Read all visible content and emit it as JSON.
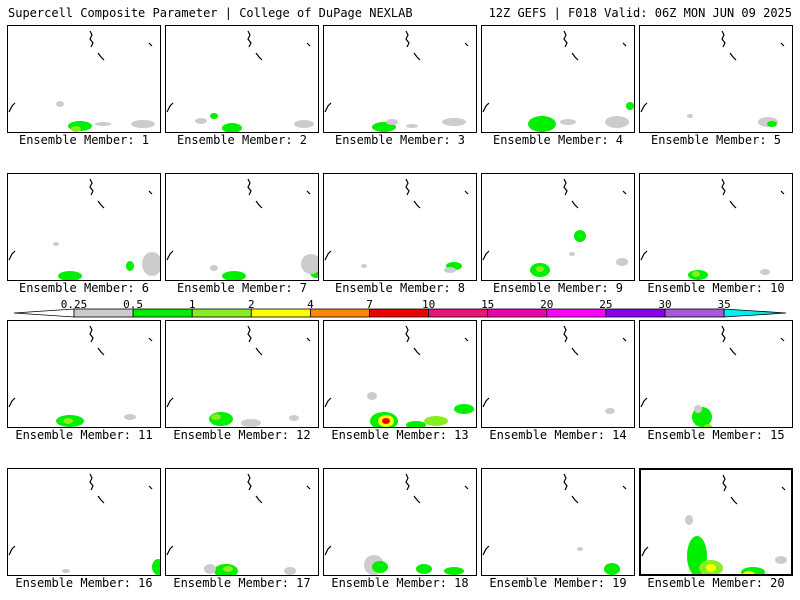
{
  "header": {
    "title_left": "Supercell Composite Parameter | College of DuPage NEXLAB",
    "title_right": "12Z GEFS | F018 Valid: 06Z MON JUN 09 2025"
  },
  "colorbar": {
    "ticks": [
      "0.25",
      "0.5",
      "1",
      "2",
      "4",
      "7",
      "10",
      "15",
      "20",
      "25",
      "30",
      "35"
    ],
    "colors": [
      "#cccccc",
      "#00ee00",
      "#88ee22",
      "#ffff00",
      "#ff8800",
      "#ee0000",
      "#ee1177",
      "#ee00aa",
      "#ff00ff",
      "#8800ee",
      "#aa55dd",
      "#00eeee"
    ],
    "underflow_color": "#ffffff",
    "overflow_color": "#00eeee"
  },
  "members": [
    {
      "label": "Ensemble Member: 1",
      "blobs": [
        [
          72,
          100,
          12,
          5,
          1
        ],
        [
          68,
          103,
          5,
          3,
          2
        ],
        [
          52,
          78,
          4,
          3,
          0
        ],
        [
          135,
          98,
          12,
          4,
          0
        ],
        [
          95,
          98,
          8,
          2,
          0
        ]
      ]
    },
    {
      "label": "Ensemble Member: 2",
      "blobs": [
        [
          66,
          102,
          10,
          5,
          1
        ],
        [
          48,
          90,
          4,
          3,
          1
        ],
        [
          138,
          98,
          10,
          4,
          0
        ],
        [
          35,
          95,
          6,
          3,
          0
        ]
      ]
    },
    {
      "label": "Ensemble Member: 3",
      "blobs": [
        [
          60,
          101,
          12,
          5,
          1
        ],
        [
          68,
          96,
          6,
          3,
          0
        ],
        [
          130,
          96,
          12,
          4,
          0
        ],
        [
          88,
          100,
          6,
          2,
          0
        ]
      ]
    },
    {
      "label": "Ensemble Member: 4",
      "blobs": [
        [
          60,
          98,
          14,
          8,
          1
        ],
        [
          60,
          94,
          6,
          4,
          1
        ],
        [
          135,
          96,
          12,
          6,
          0
        ],
        [
          86,
          96,
          8,
          3,
          0
        ],
        [
          148,
          80,
          4,
          4,
          1
        ]
      ]
    },
    {
      "label": "Ensemble Member: 5",
      "blobs": [
        [
          128,
          96,
          10,
          5,
          0
        ],
        [
          132,
          98,
          5,
          3,
          1
        ],
        [
          50,
          90,
          3,
          2,
          0
        ]
      ]
    },
    {
      "label": "Ensemble Member: 6",
      "blobs": [
        [
          62,
          102,
          12,
          5,
          1
        ],
        [
          122,
          92,
          4,
          5,
          1
        ],
        [
          144,
          90,
          10,
          12,
          0
        ],
        [
          48,
          70,
          3,
          2,
          0
        ]
      ]
    },
    {
      "label": "Ensemble Member: 7",
      "blobs": [
        [
          68,
          102,
          12,
          5,
          1
        ],
        [
          150,
          98,
          6,
          6,
          1
        ],
        [
          48,
          94,
          4,
          3,
          0
        ],
        [
          145,
          90,
          10,
          10,
          0
        ]
      ]
    },
    {
      "label": "Ensemble Member: 8",
      "blobs": [
        [
          130,
          92,
          8,
          4,
          1
        ],
        [
          126,
          96,
          6,
          3,
          0
        ],
        [
          40,
          92,
          3,
          2,
          0
        ]
      ]
    },
    {
      "label": "Ensemble Member: 9",
      "blobs": [
        [
          58,
          96,
          10,
          7,
          1
        ],
        [
          58,
          95,
          4,
          3,
          2
        ],
        [
          98,
          62,
          6,
          6,
          1
        ],
        [
          90,
          80,
          3,
          2,
          0
        ],
        [
          140,
          88,
          6,
          4,
          0
        ]
      ]
    },
    {
      "label": "Ensemble Member: 10",
      "blobs": [
        [
          58,
          101,
          10,
          5,
          1
        ],
        [
          56,
          100,
          4,
          3,
          2
        ],
        [
          125,
          98,
          5,
          3,
          0
        ]
      ]
    },
    {
      "label": "Ensemble Member: 11",
      "blobs": [
        [
          62,
          100,
          14,
          6,
          1
        ],
        [
          60,
          100,
          5,
          3,
          2
        ],
        [
          122,
          96,
          6,
          3,
          0
        ]
      ]
    },
    {
      "label": "Ensemble Member: 12",
      "blobs": [
        [
          55,
          98,
          12,
          7,
          1
        ],
        [
          50,
          96,
          5,
          3,
          2
        ],
        [
          85,
          102,
          10,
          4,
          0
        ],
        [
          128,
          97,
          5,
          3,
          0
        ]
      ]
    },
    {
      "label": "Ensemble Member: 13",
      "blobs": [
        [
          60,
          100,
          14,
          9,
          1
        ],
        [
          62,
          100,
          8,
          6,
          3
        ],
        [
          62,
          100,
          4,
          3,
          5
        ],
        [
          112,
          100,
          12,
          5,
          2
        ],
        [
          140,
          88,
          10,
          5,
          1
        ],
        [
          48,
          75,
          5,
          4,
          0
        ],
        [
          92,
          104,
          10,
          4,
          1
        ]
      ]
    },
    {
      "label": "Ensemble Member: 14",
      "blobs": [
        [
          128,
          90,
          5,
          3,
          0
        ]
      ]
    },
    {
      "label": "Ensemble Member: 15",
      "blobs": [
        [
          62,
          96,
          10,
          10,
          1
        ],
        [
          58,
          88,
          4,
          4,
          0
        ],
        [
          68,
          106,
          4,
          3,
          2
        ]
      ]
    },
    {
      "label": "Ensemble Member: 16",
      "blobs": [
        [
          150,
          98,
          6,
          8,
          1
        ],
        [
          58,
          102,
          4,
          2,
          0
        ]
      ]
    },
    {
      "label": "Ensemble Member: 17",
      "blobs": [
        [
          60,
          102,
          12,
          7,
          1
        ],
        [
          62,
          100,
          5,
          3,
          2
        ],
        [
          44,
          100,
          6,
          5,
          0
        ],
        [
          124,
          102,
          6,
          4,
          0
        ]
      ]
    },
    {
      "label": "Ensemble Member: 18",
      "blobs": [
        [
          50,
          96,
          10,
          10,
          0
        ],
        [
          56,
          98,
          8,
          6,
          1
        ],
        [
          100,
          100,
          8,
          5,
          1
        ],
        [
          130,
          102,
          10,
          4,
          1
        ]
      ]
    },
    {
      "label": "Ensemble Member: 19",
      "blobs": [
        [
          130,
          100,
          8,
          6,
          1
        ],
        [
          98,
          80,
          3,
          2,
          0
        ]
      ]
    },
    {
      "label": "Ensemble Member: 20",
      "blobs": [
        [
          56,
          86,
          10,
          20,
          1
        ],
        [
          70,
          98,
          12,
          8,
          2
        ],
        [
          70,
          98,
          5,
          4,
          3
        ],
        [
          112,
          102,
          12,
          5,
          1
        ],
        [
          108,
          104,
          6,
          3,
          3
        ],
        [
          48,
          50,
          4,
          5,
          0
        ],
        [
          140,
          90,
          6,
          4,
          0
        ]
      ]
    }
  ]
}
